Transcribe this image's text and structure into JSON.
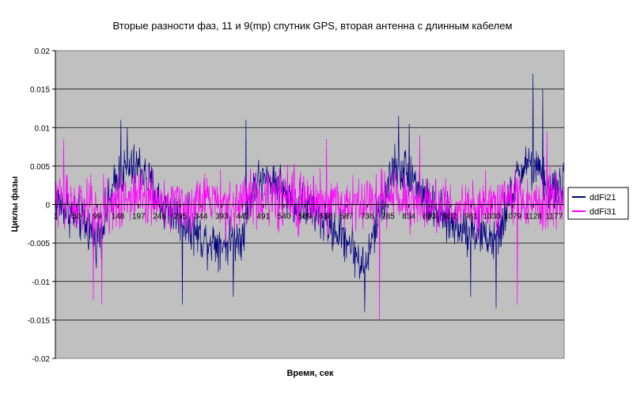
{
  "chart_data": {
    "type": "line",
    "title": "Вторые разности фаз, 11 и 9(mp) спутник GPS, вторая антенна с длинным кабелем",
    "xlabel": "Время, сек",
    "ylabel": "Циклы фазы",
    "ylim": [
      -0.02,
      0.02
    ],
    "ytick_step": 0.005,
    "y_tick_labels": [
      "-0.02",
      "-0.015",
      "-0.01",
      "-0.005",
      "0",
      "0.005",
      "0.01",
      "0.015",
      "0.02"
    ],
    "x_tick_labels": [
      "1",
      "50",
      "99",
      "148",
      "197",
      "246",
      "295",
      "344",
      "393",
      "442",
      "491",
      "540",
      "589",
      "638",
      "687",
      "736",
      "785",
      "834",
      "883",
      "932",
      "981",
      "1030",
      "1079",
      "1128",
      "1177"
    ],
    "x_count": 1200,
    "grid": true,
    "legend_position": "right",
    "plot_background": "#c0c0c0",
    "series": [
      {
        "name": "ddFi21",
        "color": "#000080",
        "trend_x": [
          1,
          60,
          100,
          150,
          200,
          250,
          300,
          350,
          400,
          440,
          470,
          520,
          560,
          600,
          650,
          690,
          730,
          760,
          800,
          840,
          880,
          920,
          960,
          1000,
          1040,
          1080,
          1110,
          1140,
          1170,
          1200
        ],
        "trend_y": [
          0.0005,
          -0.002,
          -0.0045,
          0.004,
          0.005,
          0.0,
          -0.002,
          -0.0045,
          -0.005,
          -0.004,
          0.003,
          0.003,
          0.0005,
          -0.0005,
          -0.003,
          -0.0045,
          -0.0085,
          -0.002,
          0.005,
          0.004,
          0.0,
          -0.002,
          -0.003,
          -0.0035,
          -0.005,
          0.002,
          0.0055,
          0.004,
          0.002,
          0.0025
        ],
        "noise_amplitude": 0.0045,
        "peaks": [
          [
            155,
            0.011
          ],
          [
            170,
            0.01
          ],
          [
            450,
            0.011
          ],
          [
            810,
            0.0115
          ],
          [
            835,
            0.0105
          ],
          [
            1127,
            0.017
          ],
          [
            1150,
            0.015
          ],
          [
            730,
            -0.014
          ],
          [
            980,
            -0.012
          ],
          [
            1040,
            -0.0135
          ],
          [
            300,
            -0.013
          ],
          [
            420,
            -0.012
          ]
        ]
      },
      {
        "name": "ddFi31",
        "color": "#ff00ff",
        "trend_x": [
          1,
          100,
          200,
          300,
          400,
          500,
          600,
          700,
          800,
          900,
          1000,
          1100,
          1200
        ],
        "trend_y": [
          0.0005,
          -0.0005,
          0.0015,
          0.0,
          0.0,
          0.001,
          0.0,
          0.0,
          0.001,
          0.0,
          0.0,
          0.001,
          0.0
        ],
        "noise_amplitude": 0.0055,
        "peaks": [
          [
            110,
            -0.013
          ],
          [
            90,
            -0.0125
          ],
          [
            765,
            -0.015
          ],
          [
            1090,
            -0.013
          ],
          [
            860,
            0.009
          ],
          [
            1160,
            0.0095
          ],
          [
            20,
            0.0085
          ],
          [
            640,
            0.0085
          ]
        ]
      }
    ]
  }
}
